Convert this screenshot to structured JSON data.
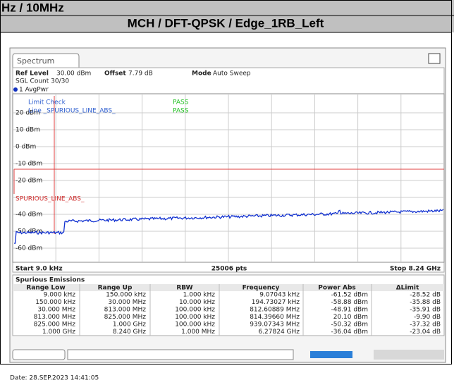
{
  "header": {
    "band": "Hz / 10MHz",
    "title": "MCH / DFT-QPSK / Edge_1RB_Left"
  },
  "spectrum": {
    "tab": "Spectrum",
    "ref_level_label": "Ref Level",
    "ref_level": "30.00 dBm",
    "offset_label": "Offset",
    "offset": "7.79 dB",
    "mode_label": "Mode",
    "mode": "Auto Sweep",
    "sgl_count": "SGL Count 30/30",
    "trace": "1 AvgPwr",
    "limit_check": "Limit Check",
    "limit_check_result": "PASS",
    "line": "Line _SPURIOUS_LINE_ABS_",
    "line_result": "PASS",
    "limit_line_label": "SPURIOUS_LINE_ABS_",
    "y_labels": [
      "20 dBm",
      "10 dBm",
      "0 dBm",
      "-10 dBm",
      "-20 dBm",
      "-40 dBm",
      "-50 dBm",
      "-60 dBm"
    ],
    "start": "Start 9.0 kHz",
    "points": "25006 pts",
    "stop": "Stop 8.24 GHz"
  },
  "table": {
    "title": "Spurious Emissions",
    "columns": [
      "Range Low",
      "Range Up",
      "RBW",
      "Frequency",
      "Power Abs",
      "ΔLimit"
    ],
    "rows": [
      [
        "9.000 kHz",
        "150.000 kHz",
        "1.000 kHz",
        "9.07043 kHz",
        "-61.52 dBm",
        "-28.52 dB"
      ],
      [
        "150.000 kHz",
        "30.000 MHz",
        "10.000 kHz",
        "194.73027 kHz",
        "-58.88 dBm",
        "-35.88 dB"
      ],
      [
        "30.000 MHz",
        "813.000 MHz",
        "100.000 kHz",
        "812.60889 MHz",
        "-48.91 dBm",
        "-35.91 dB"
      ],
      [
        "813.000 MHz",
        "825.000 MHz",
        "100.000 kHz",
        "814.39660 MHz",
        "20.10 dBm",
        "-9.90 dB"
      ],
      [
        "825.000 MHz",
        "1.000 GHz",
        "100.000 kHz",
        "939.07343 MHz",
        "-50.32 dBm",
        "-37.32 dB"
      ],
      [
        "1.000 GHz",
        "8.240 GHz",
        "1.000 MHz",
        "6.27824 GHz",
        "-36.04 dBm",
        "-23.04 dB"
      ]
    ]
  },
  "date": "Date: 28.SEP.2023 14:41:05"
}
